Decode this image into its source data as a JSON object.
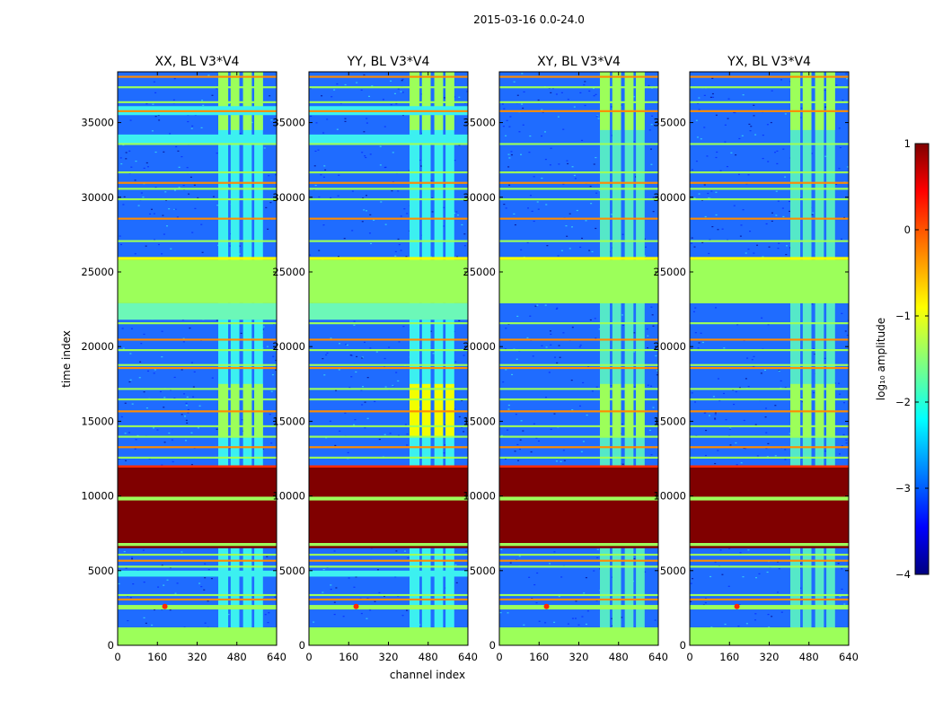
{
  "figure_title": "2015-03-16 0.0-24.0",
  "chart_data": [
    {
      "type": "heatmap",
      "title": "XX, BL V3*V4",
      "xlabel": "channel index",
      "ylabel": "time index",
      "xlim": [
        0,
        640
      ],
      "ylim": [
        0,
        38400
      ],
      "xticks": [
        "0",
        "160",
        "320",
        "480",
        "640"
      ],
      "yticks": [
        "0",
        "5000",
        "10000",
        "15000",
        "20000",
        "25000",
        "30000",
        "35000"
      ],
      "colormap": "jet"
    },
    {
      "type": "heatmap",
      "title": "YY, BL V3*V4",
      "xlabel": "channel index",
      "ylabel": "time index",
      "xlim": [
        0,
        640
      ],
      "ylim": [
        0,
        38400
      ],
      "xticks": [
        "0",
        "160",
        "320",
        "480",
        "640"
      ],
      "yticks": [
        "0",
        "5000",
        "10000",
        "15000",
        "20000",
        "25000",
        "30000",
        "35000"
      ],
      "colormap": "jet"
    },
    {
      "type": "heatmap",
      "title": "XY, BL V3*V4",
      "xlabel": "channel index",
      "ylabel": "time index",
      "xlim": [
        0,
        640
      ],
      "ylim": [
        0,
        38400
      ],
      "xticks": [
        "0",
        "160",
        "320",
        "480",
        "640"
      ],
      "yticks": [
        "0",
        "5000",
        "10000",
        "15000",
        "20000",
        "25000",
        "30000",
        "35000"
      ],
      "colormap": "jet"
    },
    {
      "type": "heatmap",
      "title": "YX, BL V3*V4",
      "xlabel": "channel index",
      "ylabel": "time index",
      "xlim": [
        0,
        640
      ],
      "ylim": [
        0,
        38400
      ],
      "xticks": [
        "0",
        "160",
        "320",
        "480",
        "640"
      ],
      "yticks": [
        "0",
        "5000",
        "10000",
        "15000",
        "20000",
        "25000",
        "30000",
        "35000"
      ],
      "colormap": "jet"
    }
  ],
  "colorbar": {
    "label": "log₁₀ amplitude",
    "range": [
      -4,
      1
    ],
    "ticks": [
      "1",
      "0",
      "−1",
      "−2",
      "−3",
      "−4"
    ]
  },
  "colors": {
    "dark_red": "#800000",
    "red": "#ff2a00",
    "orange": "#ff8c00",
    "yellow": "#f2ff00",
    "light_green": "#9cff5a",
    "cyan": "#3cf0f0",
    "mid_blue": "#1f6cff",
    "blue": "#0022ff",
    "dark_blue": "#000080"
  }
}
